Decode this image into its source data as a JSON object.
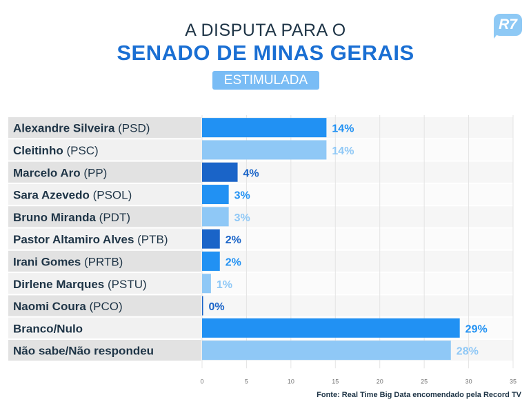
{
  "header": {
    "title_top": "A DISPUTA PARA O",
    "title_main": "SENADO DE MINAS GERAIS",
    "badge": "ESTIMULADA",
    "logo_text": "R7"
  },
  "source": "Fonte: Real Time Big Data encomendado pela Record TV",
  "colors": {
    "dark_blue": "#1a64c8",
    "mid_blue": "#2191f3",
    "light_blue": "#8fc8f6",
    "label_bg_dark": "#e2e2e2",
    "label_bg_light": "#f1f1f1",
    "text": "#1e3446"
  },
  "chart_data": {
    "type": "bar",
    "orientation": "horizontal",
    "categories": [
      {
        "name": "Alexandre Silveira",
        "party": "(PSD)"
      },
      {
        "name": "Cleitinho",
        "party": "(PSC)"
      },
      {
        "name": "Marcelo Aro",
        "party": "(PP)"
      },
      {
        "name": "Sara Azevedo",
        "party": "(PSOL)"
      },
      {
        "name": "Bruno Miranda",
        "party": "(PDT)"
      },
      {
        "name": "Pastor Altamiro Alves",
        "party": "(PTB)"
      },
      {
        "name": "Irani Gomes",
        "party": "(PRTB)"
      },
      {
        "name": "Dirlene Marques",
        "party": "(PSTU)"
      },
      {
        "name": "Naomi Coura",
        "party": "(PCO)"
      },
      {
        "name": "Branco/Nulo",
        "party": ""
      },
      {
        "name": "Não sabe/Não respondeu",
        "party": ""
      }
    ],
    "values": [
      14,
      14,
      4,
      3,
      3,
      2,
      2,
      1,
      0,
      29,
      28
    ],
    "value_labels": [
      "14%",
      "14%",
      "4%",
      "3%",
      "3%",
      "2%",
      "2%",
      "1%",
      "0%",
      "29%",
      "28%"
    ],
    "bar_colors": [
      "#2191f3",
      "#8fc8f6",
      "#1a64c8",
      "#2191f3",
      "#8fc8f6",
      "#1a64c8",
      "#2191f3",
      "#8fc8f6",
      "#1a64c8",
      "#2191f3",
      "#8fc8f6"
    ],
    "xlim": [
      0,
      35
    ],
    "xticks": [
      "0",
      "5",
      "10",
      "15",
      "20",
      "25",
      "30",
      "35"
    ],
    "grid": true
  }
}
